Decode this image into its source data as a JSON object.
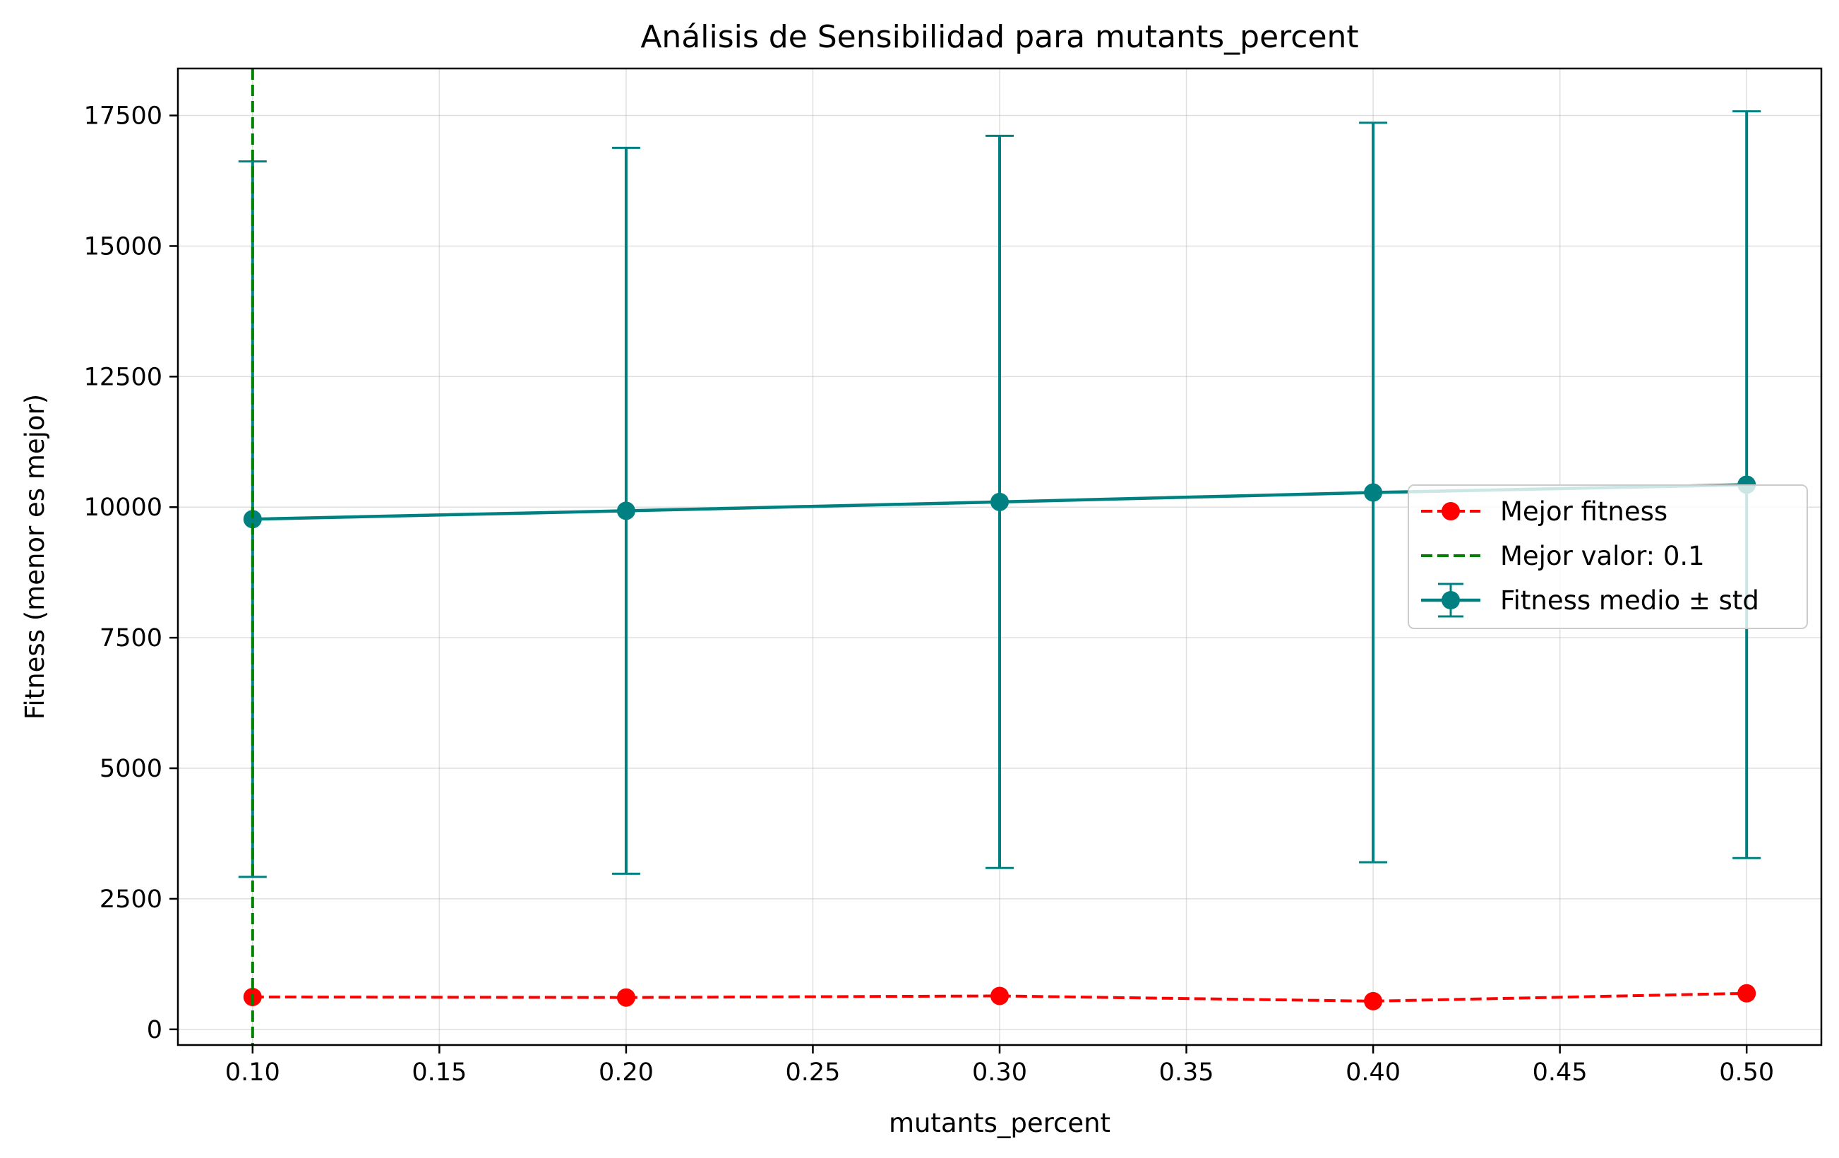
{
  "chart_data": {
    "type": "line",
    "title": "Análisis de Sensibilidad para mutants_percent",
    "xlabel": "mutants_percent",
    "ylabel": "Fitness (menor es mejor)",
    "xlim": [
      0.08,
      0.52
    ],
    "ylim": [
      -300,
      18400
    ],
    "x_ticks": [
      0.1,
      0.15,
      0.2,
      0.25,
      0.3,
      0.35,
      0.4,
      0.45,
      0.5
    ],
    "x_tick_labels": [
      "0.10",
      "0.15",
      "0.20",
      "0.25",
      "0.30",
      "0.35",
      "0.40",
      "0.45",
      "0.50"
    ],
    "y_ticks": [
      0,
      2500,
      5000,
      7500,
      10000,
      12500,
      15000,
      17500
    ],
    "y_tick_labels": [
      "0",
      "2500",
      "5000",
      "7500",
      "10000",
      "12500",
      "15000",
      "17500"
    ],
    "grid": true,
    "legend_position": "center-right",
    "series": [
      {
        "name": "Mejor fitness",
        "style": "dashed-markers",
        "color": "#ff0000",
        "x": [
          0.1,
          0.2,
          0.3,
          0.4,
          0.5
        ],
        "y": [
          620,
          610,
          640,
          540,
          690
        ]
      },
      {
        "name": "Fitness medio ± std",
        "style": "solid-markers-errorbars",
        "color": "#008080",
        "x": [
          0.1,
          0.2,
          0.3,
          0.4,
          0.5
        ],
        "y": [
          9770,
          9930,
          10100,
          10280,
          10430
        ],
        "std": [
          6850,
          6950,
          7010,
          7080,
          7150
        ]
      }
    ],
    "vlines": [
      {
        "name": "Mejor valor: 0.1",
        "x": 0.1,
        "color": "#008000",
        "style": "dashed"
      }
    ],
    "legend": [
      "Mejor fitness",
      "Mejor valor: 0.1",
      "Fitness medio ± std"
    ]
  }
}
